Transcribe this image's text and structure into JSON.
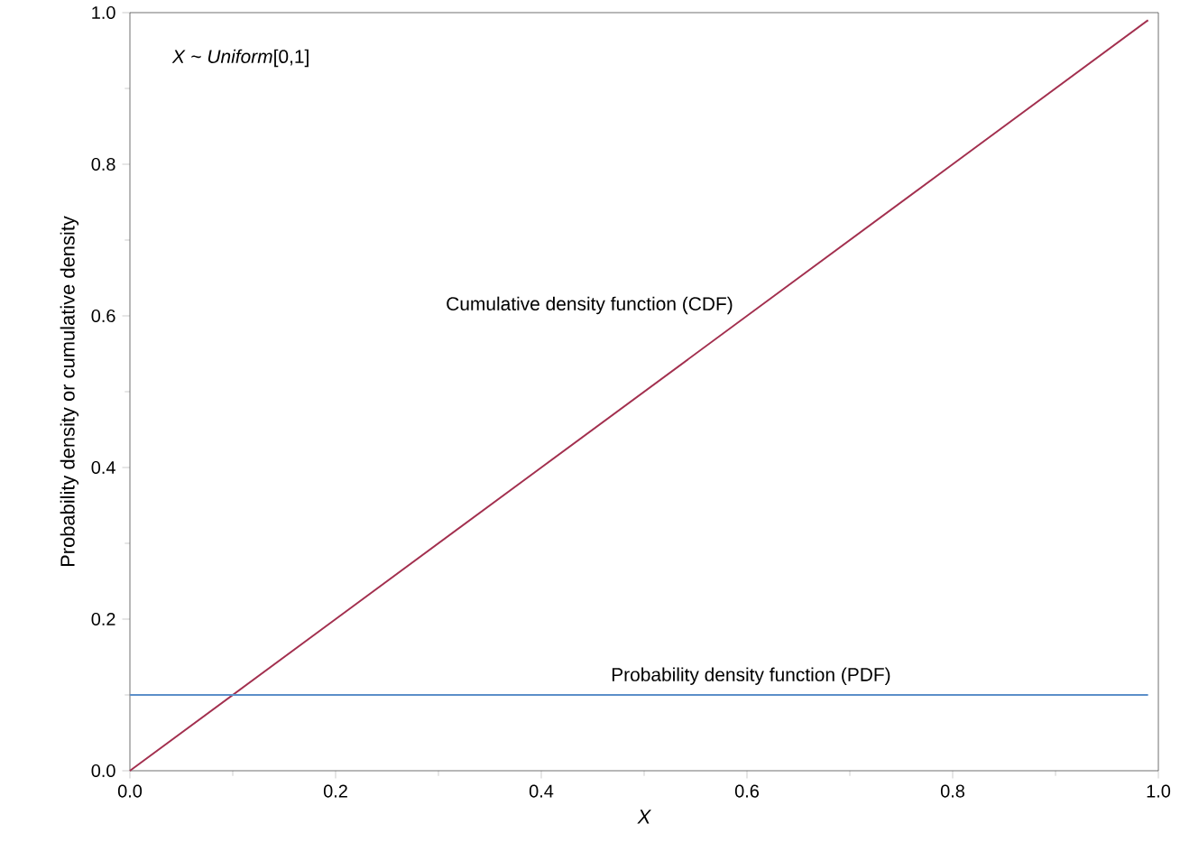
{
  "chart_data": {
    "type": "line",
    "xlabel": "X",
    "ylabel": "Probability density or cumulative density",
    "annotations": [
      "*X* ~ *Uniform*[0,1]"
    ],
    "series": [
      {
        "name": "Cumulative density function (CDF)",
        "color": "#a3304f",
        "x": [
          0,
          0.2,
          0.4,
          0.6,
          0.8,
          0.99
        ],
        "values": [
          0,
          0.2,
          0.4,
          0.6,
          0.8,
          0.99
        ]
      },
      {
        "name": "Probability density function (PDF)",
        "color": "#5b8fc9",
        "x": [
          0,
          0.2,
          0.4,
          0.6,
          0.8,
          0.99
        ],
        "values": [
          0.1,
          0.1,
          0.1,
          0.1,
          0.1,
          0.1
        ]
      }
    ],
    "xlim": [
      0,
      1
    ],
    "ylim": [
      0,
      1
    ],
    "xticks": [
      {
        "value": 0,
        "label": "0.0"
      },
      0.2,
      0.4,
      0.6,
      0.8,
      {
        "value": 1,
        "label": "1.0"
      }
    ],
    "yticks": [
      {
        "value": 0,
        "label": "0.0"
      },
      0.2,
      0.4,
      0.6,
      0.8,
      {
        "value": 1,
        "label": "1.0"
      }
    ],
    "grid": false,
    "marker": "none",
    "line_style": "solid"
  }
}
